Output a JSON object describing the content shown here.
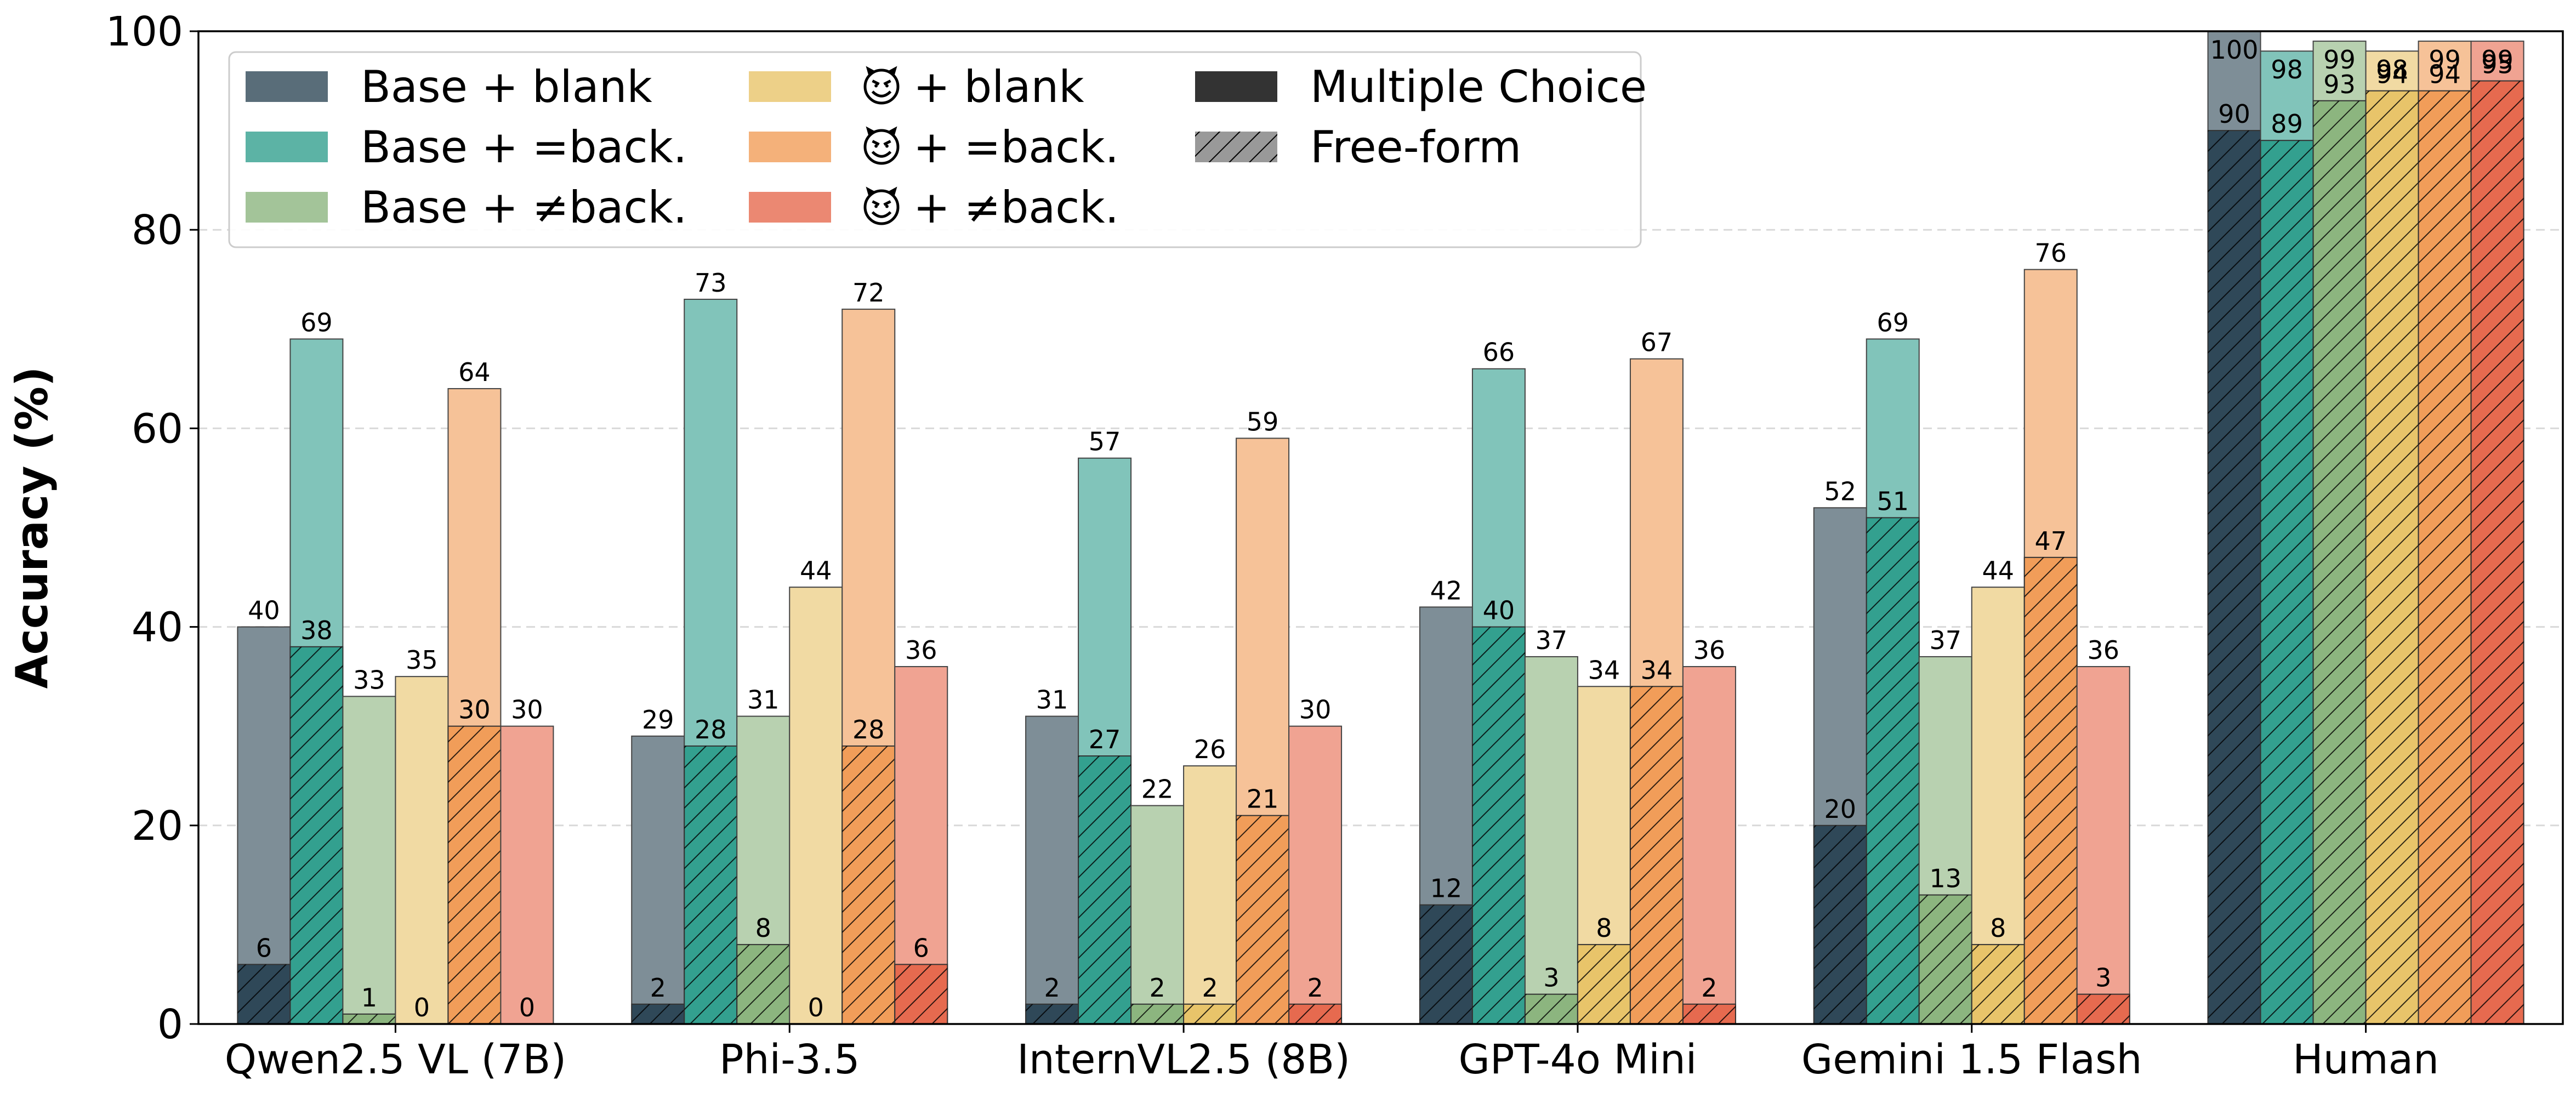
{
  "chart_data": {
    "type": "bar",
    "ylabel": "Accuracy (%)",
    "ylim": [
      0,
      100
    ],
    "yticks": [
      0,
      20,
      40,
      60,
      80,
      100
    ],
    "grid": "y-dashed",
    "legend_position": "top-left",
    "categories": [
      "Qwen2.5 VL (7B)",
      "Phi-3.5",
      "InternVL2.5 (8B)",
      "GPT-4o Mini",
      "Gemini 1.5 Flash",
      "Human"
    ],
    "series": [
      {
        "name": "Base + blank",
        "icon": "",
        "suffix": "",
        "color": "#2f4858",
        "multiple_choice": [
          40,
          29,
          31,
          42,
          52,
          100
        ],
        "free_form": [
          6,
          2,
          2,
          12,
          20,
          90
        ]
      },
      {
        "name": "Base + =back.",
        "icon": "",
        "suffix": "",
        "color": "#33a08f",
        "multiple_choice": [
          69,
          73,
          57,
          66,
          69,
          98
        ],
        "free_form": [
          38,
          28,
          27,
          40,
          51,
          89
        ]
      },
      {
        "name": "Base + ≠back.",
        "icon": "",
        "suffix": "",
        "color": "#8cb57f",
        "multiple_choice": [
          33,
          31,
          22,
          37,
          37,
          99
        ],
        "free_form": [
          1,
          8,
          2,
          3,
          13,
          93
        ]
      },
      {
        "name": "",
        "icon": "devil-face-icon",
        "suffix": "+ blank",
        "color": "#e8c46a",
        "multiple_choice": [
          35,
          44,
          26,
          34,
          44,
          98
        ],
        "free_form": [
          0,
          0,
          2,
          8,
          8,
          94
        ]
      },
      {
        "name": "",
        "icon": "devil-face-icon",
        "suffix": "+ =back.",
        "color": "#f19d59",
        "multiple_choice": [
          64,
          72,
          59,
          67,
          76,
          99
        ],
        "free_form": [
          30,
          28,
          21,
          34,
          47,
          94
        ]
      },
      {
        "name": "",
        "icon": "devil-face-icon",
        "suffix": "+ ≠back.",
        "color": "#e66a4f",
        "multiple_choice": [
          30,
          36,
          30,
          36,
          36,
          99
        ],
        "free_form": [
          0,
          6,
          2,
          2,
          3,
          95
        ]
      }
    ],
    "style_legend": [
      {
        "name": "Multiple Choice",
        "pattern": "solid"
      },
      {
        "name": "Free-form",
        "pattern": "hatched"
      }
    ]
  }
}
